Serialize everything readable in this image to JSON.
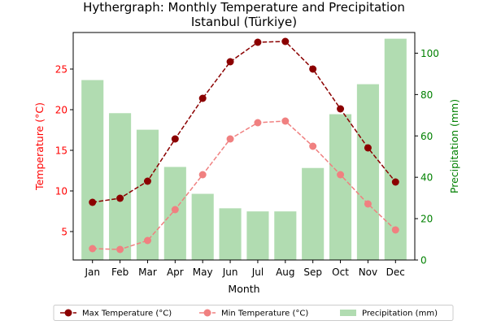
{
  "chart_data": {
    "type": "bar+line",
    "title_line1": "Hythergraph: Monthly Temperature and Precipitation",
    "title_line2": "Istanbul (Türkiye)",
    "xlabel": "Month",
    "ylabel_left": "Temperature (°C)",
    "ylabel_right": "Precipitation (mm)",
    "categories": [
      "Jan",
      "Feb",
      "Mar",
      "Apr",
      "May",
      "Jun",
      "Jul",
      "Aug",
      "Sep",
      "Oct",
      "Nov",
      "Dec"
    ],
    "ylim_left": [
      1.5,
      29.5
    ],
    "ylim_right": [
      0,
      110
    ],
    "yticks_left": [
      5,
      10,
      15,
      20,
      25
    ],
    "yticks_right": [
      0,
      20,
      40,
      60,
      80,
      100
    ],
    "grid": false,
    "series": [
      {
        "name": "Max Temperature (°C)",
        "kind": "line",
        "axis": "left",
        "color": "#8b0000",
        "values": [
          8.6,
          9.1,
          11.2,
          16.4,
          21.4,
          25.9,
          28.3,
          28.4,
          25.0,
          20.1,
          15.3,
          11.1
        ]
      },
      {
        "name": "Min Temperature (°C)",
        "kind": "line",
        "axis": "left",
        "color": "#f08080",
        "values": [
          2.9,
          2.8,
          3.9,
          7.7,
          12.0,
          16.4,
          18.4,
          18.6,
          15.5,
          12.0,
          8.4,
          5.2
        ]
      },
      {
        "name": "Precipitation (mm)",
        "kind": "bar",
        "axis": "right",
        "color": "#2ca02c",
        "values": [
          87.0,
          71.0,
          63.0,
          45.0,
          32.0,
          25.0,
          23.5,
          23.5,
          44.5,
          70.5,
          85.0,
          107.0
        ]
      }
    ],
    "colors": {
      "left_axis": "#ff0000",
      "right_axis": "#008000"
    },
    "legend_position": "bottom-center"
  }
}
